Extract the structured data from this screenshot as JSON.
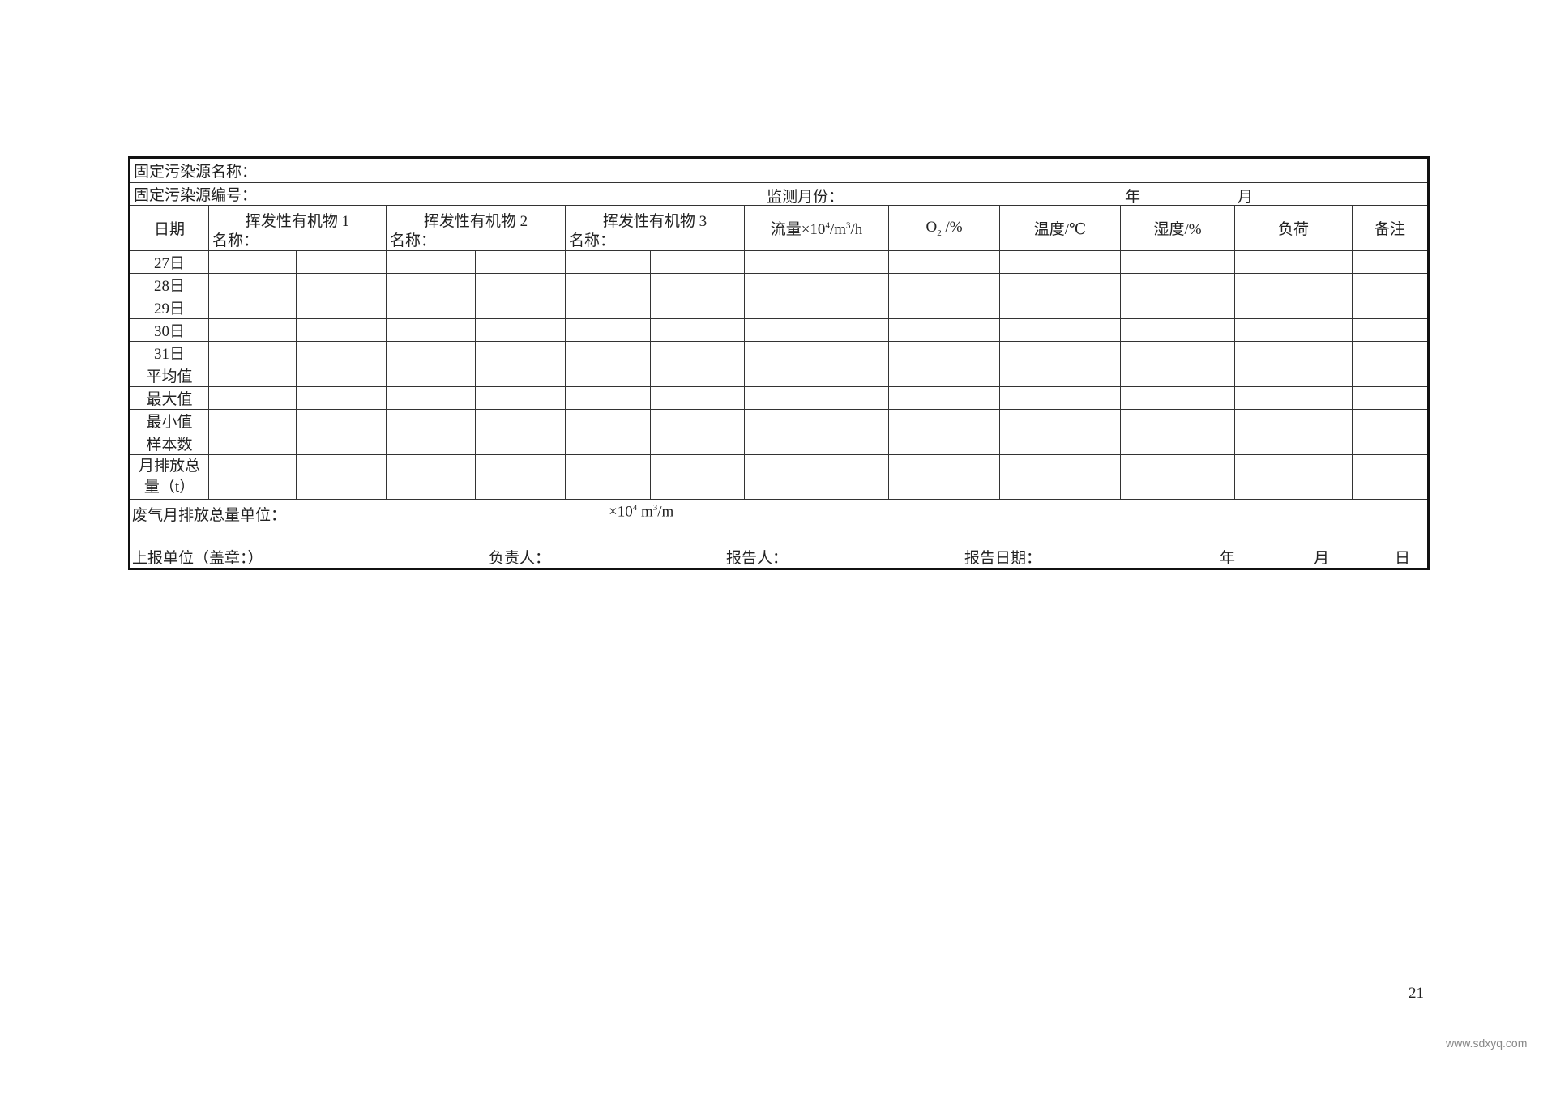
{
  "form": {
    "source_name_label": "固定污染源名称：",
    "source_code_label": "固定污染源编号：",
    "month_label": "监测月份：",
    "year_unit": "年",
    "month_unit": "月",
    "headers": {
      "date": "日期",
      "voc1": "挥发性有机物 1",
      "voc2": "挥发性有机物 2",
      "voc3": "挥发性有机物 3",
      "name_label": "名称：",
      "flow_prefix": "流量×10",
      "flow_sup1": "4",
      "flow_mid": "/m",
      "flow_sup2": "3",
      "flow_suffix": "/h",
      "o2": "O",
      "o2_sub": "2",
      "o2_unit": " /%",
      "temp": "温度/℃",
      "humidity": "湿度/%",
      "load": "负荷",
      "remarks": "备注"
    },
    "rows": [
      "27日",
      "28日",
      "29日",
      "30日",
      "31日",
      "平均值",
      "最大值",
      "最小值",
      "样本数"
    ],
    "total_row": "月排放总量（t）",
    "waste_gas_label": "废气月排放总量单位：",
    "waste_gas_unit_prefix": "×10",
    "waste_gas_unit_sup1": "4",
    "waste_gas_unit_mid": " m",
    "waste_gas_unit_sup2": "3",
    "waste_gas_unit_suffix": "/m",
    "reporting_unit": "上报单位（盖章：）",
    "responsible": "负责人：",
    "reporter": "报告人：",
    "report_date": "报告日期：",
    "day_unit": "日"
  },
  "page_number": "21",
  "watermark": "www.sdxyq.com"
}
